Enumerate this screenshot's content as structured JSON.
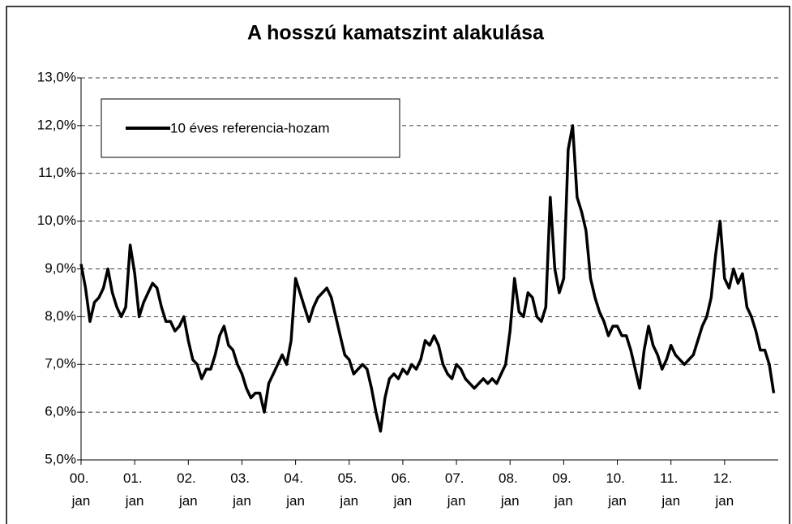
{
  "chart_data": {
    "type": "line",
    "title": "A hosszú kamatszint alakulása",
    "categories": [
      "00. jan",
      null,
      null,
      null,
      null,
      null,
      null,
      null,
      null,
      null,
      null,
      null,
      "01. jan",
      null,
      null,
      null,
      null,
      null,
      null,
      null,
      null,
      null,
      null,
      null,
      "02. jan",
      null,
      null,
      null,
      null,
      null,
      null,
      null,
      null,
      null,
      null,
      null,
      "03. jan",
      null,
      null,
      null,
      null,
      null,
      null,
      null,
      null,
      null,
      null,
      null,
      "04. jan",
      null,
      null,
      null,
      null,
      null,
      null,
      null,
      null,
      null,
      null,
      null,
      "05. jan",
      null,
      null,
      null,
      null,
      null,
      null,
      null,
      null,
      null,
      null,
      null,
      "06. jan",
      null,
      null,
      null,
      null,
      null,
      null,
      null,
      null,
      null,
      null,
      null,
      "07. jan",
      null,
      null,
      null,
      null,
      null,
      null,
      null,
      null,
      null,
      null,
      null,
      "08. jan",
      null,
      null,
      null,
      null,
      null,
      null,
      null,
      null,
      null,
      null,
      null,
      "09. jan",
      null,
      null,
      null,
      null,
      null,
      null,
      null,
      null,
      null,
      null,
      null,
      "10. jan",
      null,
      null,
      null,
      null,
      null,
      null,
      null,
      null,
      null,
      null,
      null,
      "11. jan",
      null,
      null,
      null,
      null,
      null,
      null,
      null,
      null,
      null,
      null,
      null,
      "12. jan",
      null,
      null,
      null,
      null,
      null,
      null,
      null,
      null,
      null,
      null,
      null
    ],
    "series": [
      {
        "name": "10 éves referencia-hozam",
        "color": "#000000",
        "values": [
          9.1,
          8.6,
          7.9,
          8.3,
          8.4,
          8.6,
          9.0,
          8.5,
          8.2,
          8.0,
          8.2,
          9.5,
          8.9,
          8.0,
          8.3,
          8.5,
          8.7,
          8.6,
          8.2,
          7.9,
          7.9,
          7.7,
          7.8,
          8.0,
          7.5,
          7.1,
          7.0,
          6.7,
          6.9,
          6.9,
          7.2,
          7.6,
          7.8,
          7.4,
          7.3,
          7.0,
          6.8,
          6.5,
          6.3,
          6.4,
          6.4,
          6.0,
          6.6,
          6.8,
          7.0,
          7.2,
          7.0,
          7.5,
          8.8,
          8.5,
          8.2,
          7.9,
          8.2,
          8.4,
          8.5,
          8.6,
          8.4,
          8.0,
          7.6,
          7.2,
          7.1,
          6.8,
          6.9,
          7.0,
          6.9,
          6.5,
          6.0,
          5.6,
          6.3,
          6.7,
          6.8,
          6.7,
          6.9,
          6.8,
          7.0,
          6.9,
          7.1,
          7.5,
          7.4,
          7.6,
          7.4,
          7.0,
          6.8,
          6.7,
          7.0,
          6.9,
          6.7,
          6.6,
          6.5,
          6.6,
          6.7,
          6.6,
          6.7,
          6.6,
          6.8,
          7.0,
          7.7,
          8.8,
          8.1,
          8.0,
          8.5,
          8.4,
          8.0,
          7.9,
          8.2,
          10.5,
          9.0,
          8.5,
          8.8,
          11.5,
          12.0,
          10.5,
          10.2,
          9.8,
          8.8,
          8.4,
          8.1,
          7.9,
          7.6,
          7.8,
          7.8,
          7.6,
          7.6,
          7.3,
          6.9,
          6.5,
          7.3,
          7.8,
          7.4,
          7.2,
          6.9,
          7.1,
          7.4,
          7.2,
          7.1,
          7.0,
          7.1,
          7.2,
          7.5,
          7.8,
          8.0,
          8.4,
          9.3,
          10.0,
          8.8,
          8.6,
          9.0,
          8.7,
          8.9,
          8.2,
          8.0,
          7.7,
          7.3,
          7.3,
          7.0,
          6.4
        ]
      }
    ],
    "ylim": [
      5,
      13
    ],
    "yticks": [
      {
        "value": 5,
        "label": "5,0%"
      },
      {
        "value": 6,
        "label": "6,0%"
      },
      {
        "value": 7,
        "label": "7,0%"
      },
      {
        "value": 8,
        "label": "8,0%"
      },
      {
        "value": 9,
        "label": "9,0%"
      },
      {
        "value": 10,
        "label": "10,0%"
      },
      {
        "value": 11,
        "label": "11,0%"
      },
      {
        "value": 12,
        "label": "12,0%"
      },
      {
        "value": 13,
        "label": "13,0%"
      }
    ],
    "grid": true,
    "legend": "top-left"
  }
}
